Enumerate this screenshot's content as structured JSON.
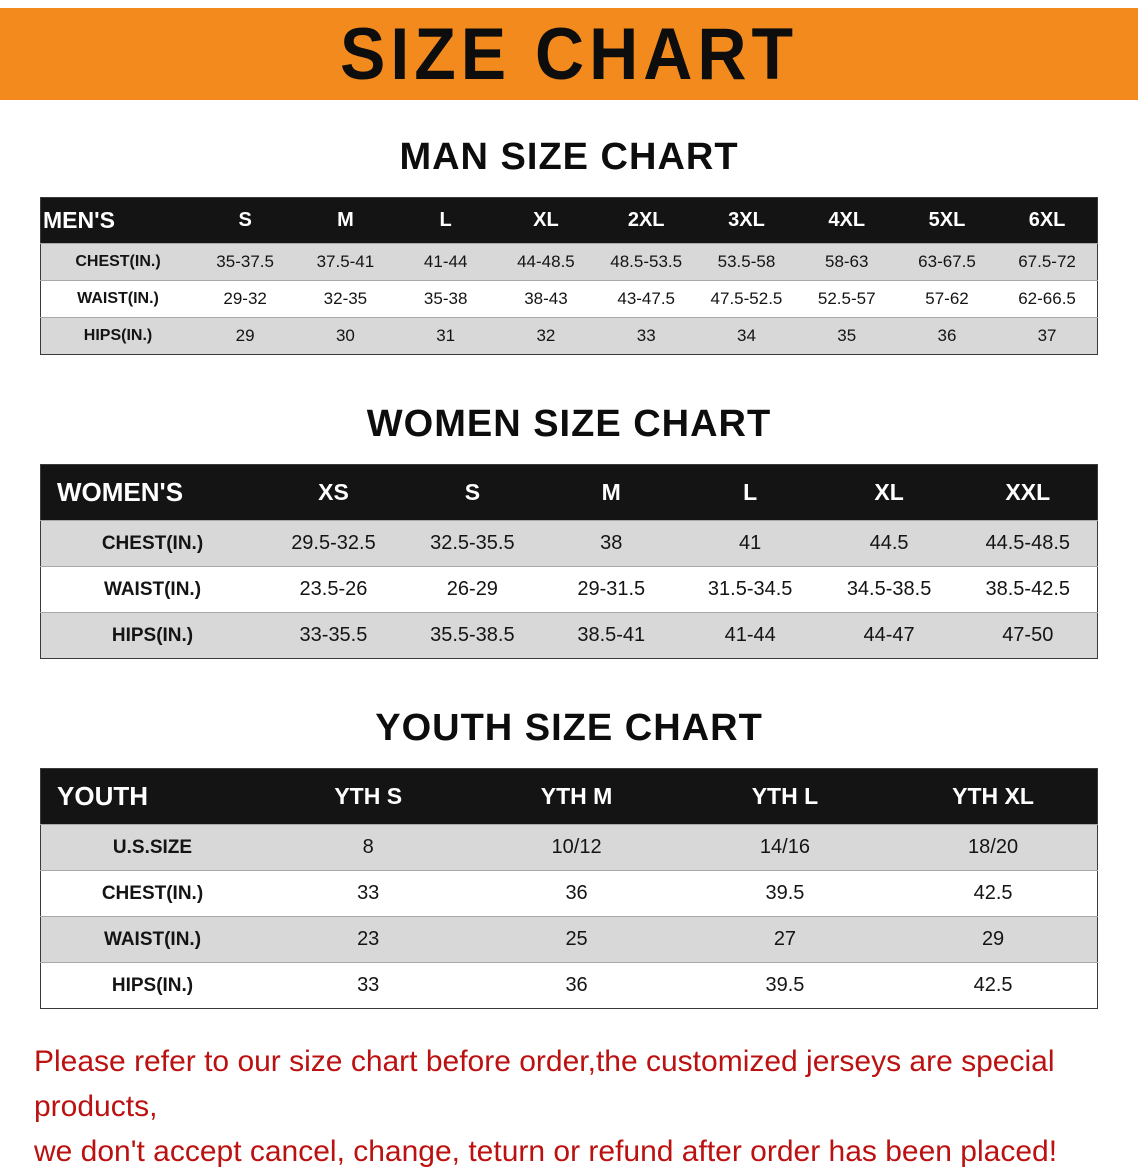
{
  "page": {
    "title": "SIZE CHART"
  },
  "colors": {
    "banner_bg": "#f28a1d",
    "header_bg": "#141414",
    "row_alt": "#d8d8d8",
    "note_color": "#bb1111"
  },
  "sections": [
    {
      "heading": "MAN SIZE CHART",
      "label": "MEN'S",
      "columns": [
        "S",
        "M",
        "L",
        "XL",
        "2XL",
        "3XL",
        "4XL",
        "5XL",
        "6XL"
      ],
      "rows": [
        {
          "label": "CHEST(IN.)",
          "values": [
            "35-37.5",
            "37.5-41",
            "41-44",
            "44-48.5",
            "48.5-53.5",
            "53.5-58",
            "58-63",
            "63-67.5",
            "67.5-72"
          ]
        },
        {
          "label": "WAIST(IN.)",
          "values": [
            "29-32",
            "32-35",
            "35-38",
            "38-43",
            "43-47.5",
            "47.5-52.5",
            "52.5-57",
            "57-62",
            "62-66.5"
          ]
        },
        {
          "label": "HIPS(IN.)",
          "values": [
            "29",
            "30",
            "31",
            "32",
            "33",
            "34",
            "35",
            "36",
            "37"
          ]
        }
      ]
    },
    {
      "heading": "WOMEN SIZE CHART",
      "label": "WOMEN'S",
      "columns": [
        "XS",
        "S",
        "M",
        "L",
        "XL",
        "XXL"
      ],
      "rows": [
        {
          "label": "CHEST(IN.)",
          "values": [
            "29.5-32.5",
            "32.5-35.5",
            "38",
            "41",
            "44.5",
            "44.5-48.5"
          ]
        },
        {
          "label": "WAIST(IN.)",
          "values": [
            "23.5-26",
            "26-29",
            "29-31.5",
            "31.5-34.5",
            "34.5-38.5",
            "38.5-42.5"
          ]
        },
        {
          "label": "HIPS(IN.)",
          "values": [
            "33-35.5",
            "35.5-38.5",
            "38.5-41",
            "41-44",
            "44-47",
            "47-50"
          ]
        }
      ]
    },
    {
      "heading": "YOUTH SIZE CHART",
      "label": "YOUTH",
      "columns": [
        "YTH S",
        "YTH M",
        "YTH L",
        "YTH XL"
      ],
      "rows": [
        {
          "label": "U.S.SIZE",
          "values": [
            "8",
            "10/12",
            "14/16",
            "18/20"
          ]
        },
        {
          "label": "CHEST(IN.)",
          "values": [
            "33",
            "36",
            "39.5",
            "42.5"
          ]
        },
        {
          "label": "WAIST(IN.)",
          "values": [
            "23",
            "25",
            "27",
            "29"
          ]
        },
        {
          "label": "HIPS(IN.)",
          "values": [
            "33",
            "36",
            "39.5",
            "42.5"
          ]
        }
      ]
    }
  ],
  "note": {
    "lines": [
      "Please refer to our size chart before order,the customized jerseys are special products,",
      "we don't accept cancel, change, teturn or refund after order has been placed!"
    ]
  }
}
